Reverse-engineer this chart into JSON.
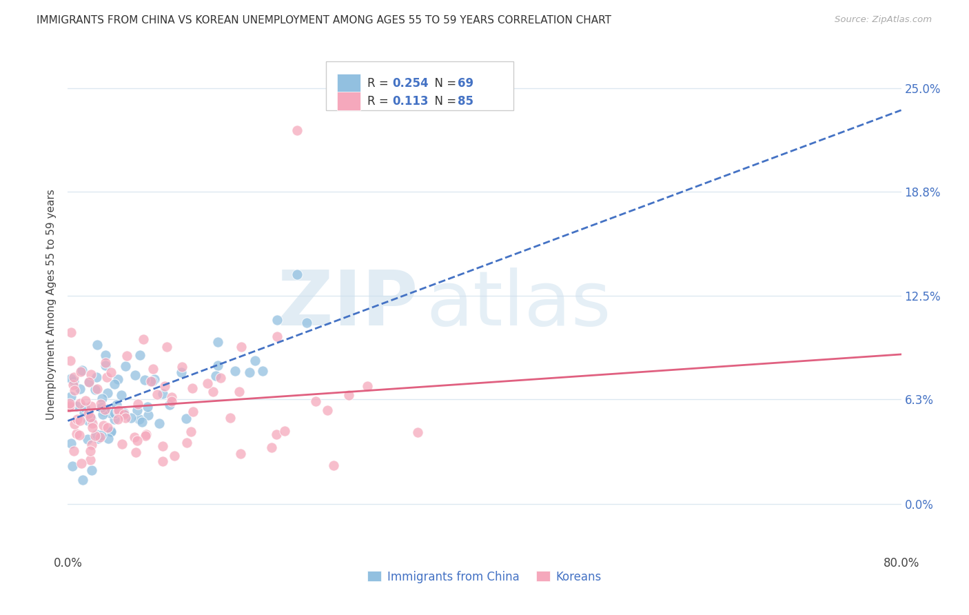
{
  "title": "IMMIGRANTS FROM CHINA VS KOREAN UNEMPLOYMENT AMONG AGES 55 TO 59 YEARS CORRELATION CHART",
  "source": "Source: ZipAtlas.com",
  "ylabel": "Unemployment Among Ages 55 to 59 years",
  "ytick_values": [
    0.0,
    6.3,
    12.5,
    18.8,
    25.0
  ],
  "xmin": 0.0,
  "xmax": 80.0,
  "ymin": -3.0,
  "ymax": 27.0,
  "china_color": "#92c0e0",
  "korean_color": "#f5a8bc",
  "trend_china_color": "#4472c4",
  "trend_korean_color": "#e06080",
  "china_R": 0.254,
  "china_N": 69,
  "korean_R": 0.113,
  "korean_N": 85,
  "grid_color": "#dce8f0",
  "watermark_color": "#cde0ee"
}
